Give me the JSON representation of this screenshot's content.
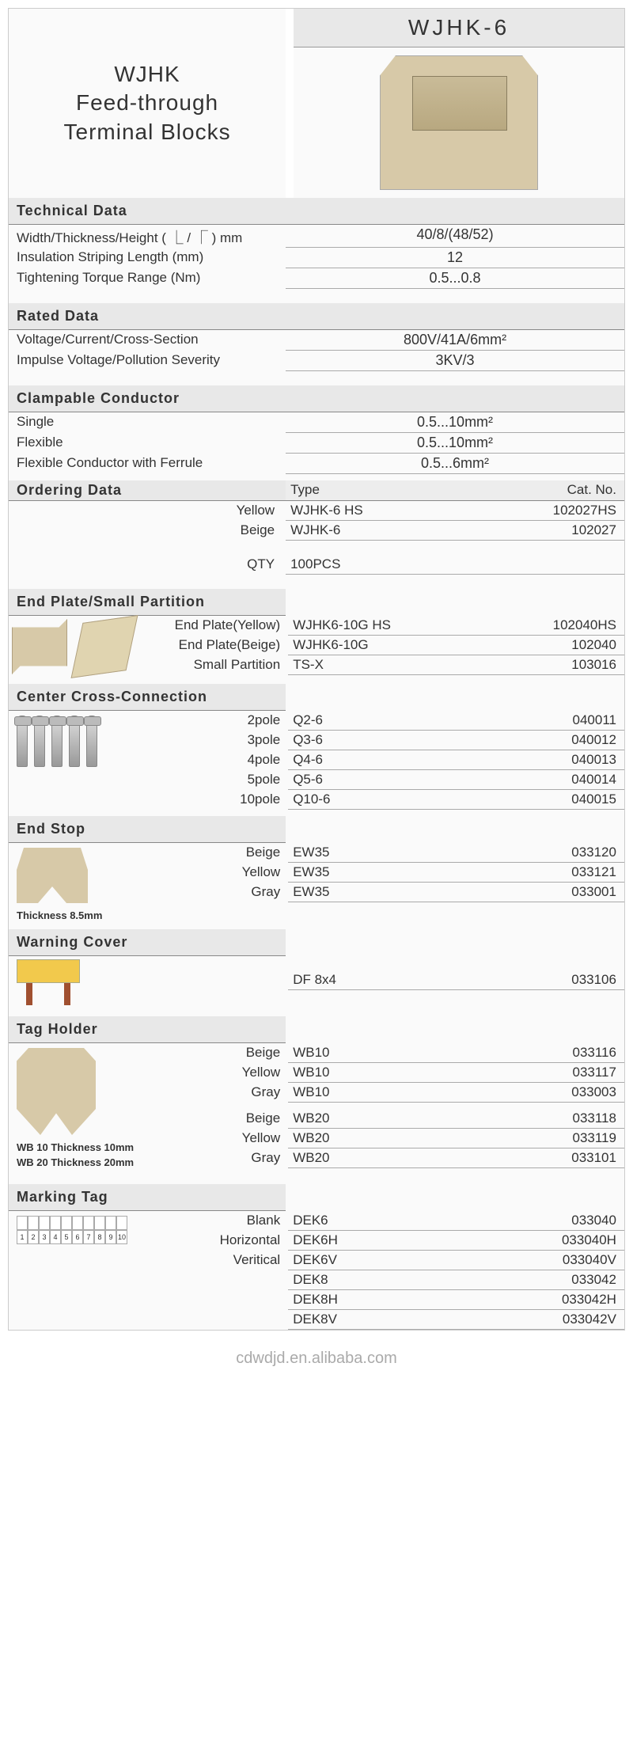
{
  "header": {
    "title_line1": "WJHK",
    "title_line2": "Feed-through",
    "title_line3": "Terminal Blocks",
    "model": "WJHK-6"
  },
  "technical": {
    "title": "Technical Data",
    "rows": [
      {
        "label": "Width/Thickness/Height ( ⎿ / ⎾ ) mm",
        "value": "40/8/(48/52)"
      },
      {
        "label": "Insulation Striping Length (mm)",
        "value": "12"
      },
      {
        "label": "Tightening Torque Range (Nm)",
        "value": "0.5...0.8"
      }
    ]
  },
  "rated": {
    "title": "Rated Data",
    "rows": [
      {
        "label": "Voltage/Current/Cross-Section",
        "value": "800V/41A/6mm²"
      },
      {
        "label": "Impulse Voltage/Pollution Severity",
        "value": "3KV/3"
      }
    ]
  },
  "clampable": {
    "title": "Clampable Conductor",
    "rows": [
      {
        "label": "Single",
        "value": "0.5...10mm²"
      },
      {
        "label": "Flexible",
        "value": "0.5...10mm²"
      },
      {
        "label": "Flexible Conductor with Ferrule",
        "value": "0.5...6mm²"
      }
    ]
  },
  "ordering": {
    "title": "Ordering Data",
    "head_type": "Type",
    "head_cat": "Cat. No.",
    "rows": [
      {
        "color": "Yellow",
        "type": "WJHK-6 HS",
        "cat": "102027HS"
      },
      {
        "color": "Beige",
        "type": "WJHK-6",
        "cat": "102027"
      }
    ],
    "qty_label": "QTY",
    "qty_value": "100PCS"
  },
  "endplate": {
    "title": "End Plate/Small Partition",
    "rows": [
      {
        "label": "End Plate(Yellow)",
        "type": "WJHK6-10G HS",
        "cat": "102040HS"
      },
      {
        "label": "End Plate(Beige)",
        "type": "WJHK6-10G",
        "cat": "102040"
      },
      {
        "label": "Small Partition",
        "type": "TS-X",
        "cat": "103016"
      }
    ]
  },
  "crossconn": {
    "title": "Center Cross-Connection",
    "rows": [
      {
        "label": "2pole",
        "type": "Q2-6",
        "cat": "040011"
      },
      {
        "label": "3pole",
        "type": "Q3-6",
        "cat": "040012"
      },
      {
        "label": "4pole",
        "type": "Q4-6",
        "cat": "040013"
      },
      {
        "label": "5pole",
        "type": "Q5-6",
        "cat": "040014"
      },
      {
        "label": "10pole",
        "type": "Q10-6",
        "cat": "040015"
      }
    ]
  },
  "endstop": {
    "title": "End Stop",
    "note": "Thickness 8.5mm",
    "rows": [
      {
        "label": "Beige",
        "type": "EW35",
        "cat": "033120"
      },
      {
        "label": "Yellow",
        "type": "EW35",
        "cat": "033121"
      },
      {
        "label": "Gray",
        "type": "EW35",
        "cat": "033001"
      }
    ]
  },
  "warning": {
    "title": "Warning Cover",
    "rows": [
      {
        "label": "",
        "type": "DF 8x4",
        "cat": "033106"
      }
    ]
  },
  "tagholder": {
    "title": "Tag Holder",
    "note1": "WB 10 Thickness 10mm",
    "note2": "WB 20 Thickness 20mm",
    "rows": [
      {
        "label": "Beige",
        "type": "WB10",
        "cat": "033116"
      },
      {
        "label": "Yellow",
        "type": "WB10",
        "cat": "033117"
      },
      {
        "label": "Gray",
        "type": "WB10",
        "cat": "033003"
      }
    ],
    "rows2": [
      {
        "label": "Beige",
        "type": "WB20",
        "cat": "033118"
      },
      {
        "label": "Yellow",
        "type": "WB20",
        "cat": "033119"
      },
      {
        "label": "Gray",
        "type": "WB20",
        "cat": "033101"
      }
    ]
  },
  "marking": {
    "title": "Marking Tag",
    "rows": [
      {
        "label": "Blank",
        "type": "DEK6",
        "cat": "033040"
      },
      {
        "label": "Horizontal",
        "type": "DEK6H",
        "cat": "033040H"
      },
      {
        "label": "Veritical",
        "type": "DEK6V",
        "cat": "033040V"
      },
      {
        "label": "",
        "type": "DEK8",
        "cat": "033042"
      },
      {
        "label": "",
        "type": "DEK8H",
        "cat": "033042H"
      },
      {
        "label": "",
        "type": "DEK8V",
        "cat": "033042V"
      }
    ]
  },
  "watermark": "cdwdjd.en.alibaba.com"
}
